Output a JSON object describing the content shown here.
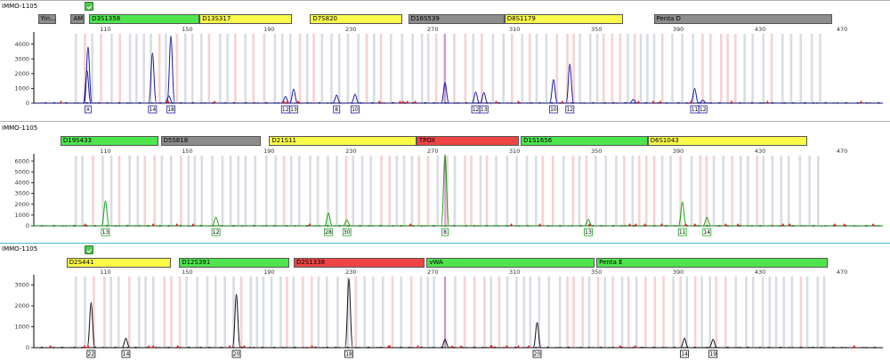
{
  "colors": {
    "green": "#4ee44e",
    "yellow": "#fafa4a",
    "red": "#ee4444",
    "grey": "#8c8c8c",
    "blue_trace": "#1a1aa0",
    "green_trace": "#1aa01a",
    "black_trace": "#111111",
    "bin_grey": "#d9dde3",
    "bin_pink": "#f6d2d2",
    "marker": "#dd1b1b",
    "ladder_line": "#cc44cc"
  },
  "x_ticks": [
    "110",
    "150",
    "190",
    "230",
    "270",
    "310",
    "350",
    "390",
    "430",
    "470"
  ],
  "x_tick_values": [
    110,
    150,
    190,
    230,
    270,
    310,
    350,
    390,
    430,
    470
  ],
  "panels": [
    {
      "id": "blue",
      "sample_name": "IMMO-1105",
      "dye": "blue",
      "y_ticks": [
        "0",
        "1000",
        "2000",
        "3000",
        "4000"
      ],
      "y_max": 4700,
      "loci": [
        {
          "name": "Yin...",
          "color": "grey",
          "start": 77,
          "end": 86
        },
        {
          "name": "AMEL",
          "color": "grey",
          "start": 93,
          "end": 100
        },
        {
          "name": "D3S1358",
          "color": "green",
          "start": 102,
          "end": 156
        },
        {
          "name": "D13S317",
          "color": "yellow",
          "start": 156,
          "end": 201
        },
        {
          "name": "D7S820",
          "color": "yellow",
          "start": 210,
          "end": 255
        },
        {
          "name": "D16S539",
          "color": "grey",
          "start": 258,
          "end": 305
        },
        {
          "name": "D8S1179",
          "color": "yellow",
          "start": 305,
          "end": 363
        },
        {
          "name": "Penta D",
          "color": "grey",
          "start": 378,
          "end": 465
        }
      ],
      "peaks": [
        {
          "x": 101.5,
          "h": 3800,
          "label": "X"
        },
        {
          "x": 101,
          "h": 2200,
          "label": ""
        },
        {
          "x": 133,
          "h": 3400,
          "label": "14"
        },
        {
          "x": 141,
          "h": 500,
          "label": ""
        },
        {
          "x": 142,
          "h": 4550,
          "label": "18"
        },
        {
          "x": 198,
          "h": 450,
          "label": "12"
        },
        {
          "x": 202,
          "h": 950,
          "label": "13"
        },
        {
          "x": 223,
          "h": 550,
          "label": "8"
        },
        {
          "x": 232,
          "h": 600,
          "label": "10"
        },
        {
          "x": 276,
          "h": 1400,
          "label": ""
        },
        {
          "x": 291,
          "h": 750,
          "label": "12"
        },
        {
          "x": 295,
          "h": 720,
          "label": "13"
        },
        {
          "x": 329,
          "h": 1600,
          "label": "10"
        },
        {
          "x": 337,
          "h": 2650,
          "label": "12"
        },
        {
          "x": 368,
          "h": 250,
          "label": ""
        },
        {
          "x": 398,
          "h": 1000,
          "label": "11"
        },
        {
          "x": 402,
          "h": 200,
          "label": "12"
        }
      ],
      "ladder_x": 276
    },
    {
      "id": "green",
      "sample_name": "IMMO-1105",
      "dye": "green",
      "y_ticks": [
        "0",
        "1000",
        "2000",
        "3000",
        "4000",
        "5000",
        "6000"
      ],
      "y_max": 6500,
      "loci": [
        {
          "name": "D19S433",
          "color": "green",
          "start": 88,
          "end": 136
        },
        {
          "name": "D5S818",
          "color": "grey",
          "start": 137,
          "end": 186
        },
        {
          "name": "D21S11",
          "color": "yellow",
          "start": 190,
          "end": 262
        },
        {
          "name": "TPOX",
          "color": "red",
          "start": 262,
          "end": 312
        },
        {
          "name": "D1S1656",
          "color": "green",
          "start": 313,
          "end": 375
        },
        {
          "name": "D6S1043",
          "color": "yellow",
          "start": 375,
          "end": 453
        }
      ],
      "peaks": [
        {
          "x": 110,
          "h": 2300,
          "label": "13"
        },
        {
          "x": 164,
          "h": 800,
          "label": "12"
        },
        {
          "x": 219,
          "h": 1200,
          "label": "28"
        },
        {
          "x": 228,
          "h": 550,
          "label": "30"
        },
        {
          "x": 276,
          "h": 6600,
          "label": "8"
        },
        {
          "x": 346,
          "h": 600,
          "label": "13"
        },
        {
          "x": 392,
          "h": 2200,
          "label": "11"
        },
        {
          "x": 404,
          "h": 800,
          "label": "14"
        }
      ],
      "ladder_x": 276
    },
    {
      "id": "black",
      "sample_name": "IMMO-1105",
      "dye": "black",
      "y_ticks": [
        "0",
        "1000",
        "2000",
        "3000"
      ],
      "y_max": 3400,
      "loci": [
        {
          "name": "D2S441",
          "color": "yellow",
          "start": 91,
          "end": 142
        },
        {
          "name": "D12S391",
          "color": "green",
          "start": 146,
          "end": 200
        },
        {
          "name": "D2S1338",
          "color": "red",
          "start": 202,
          "end": 266
        },
        {
          "name": "vWA",
          "color": "green",
          "start": 267,
          "end": 349
        },
        {
          "name": "Penta E",
          "color": "green",
          "start": 350,
          "end": 463
        }
      ],
      "peaks": [
        {
          "x": 103,
          "h": 2150,
          "label": "22"
        },
        {
          "x": 120,
          "h": 450,
          "label": "14"
        },
        {
          "x": 174,
          "h": 2550,
          "label": "20"
        },
        {
          "x": 229,
          "h": 3300,
          "label": "18"
        },
        {
          "x": 276,
          "h": 400,
          "label": ""
        },
        {
          "x": 321,
          "h": 1200,
          "label": "20"
        },
        {
          "x": 393,
          "h": 450,
          "label": "14"
        },
        {
          "x": 407,
          "h": 400,
          "label": "19"
        }
      ],
      "ladder_x": 276
    }
  ]
}
